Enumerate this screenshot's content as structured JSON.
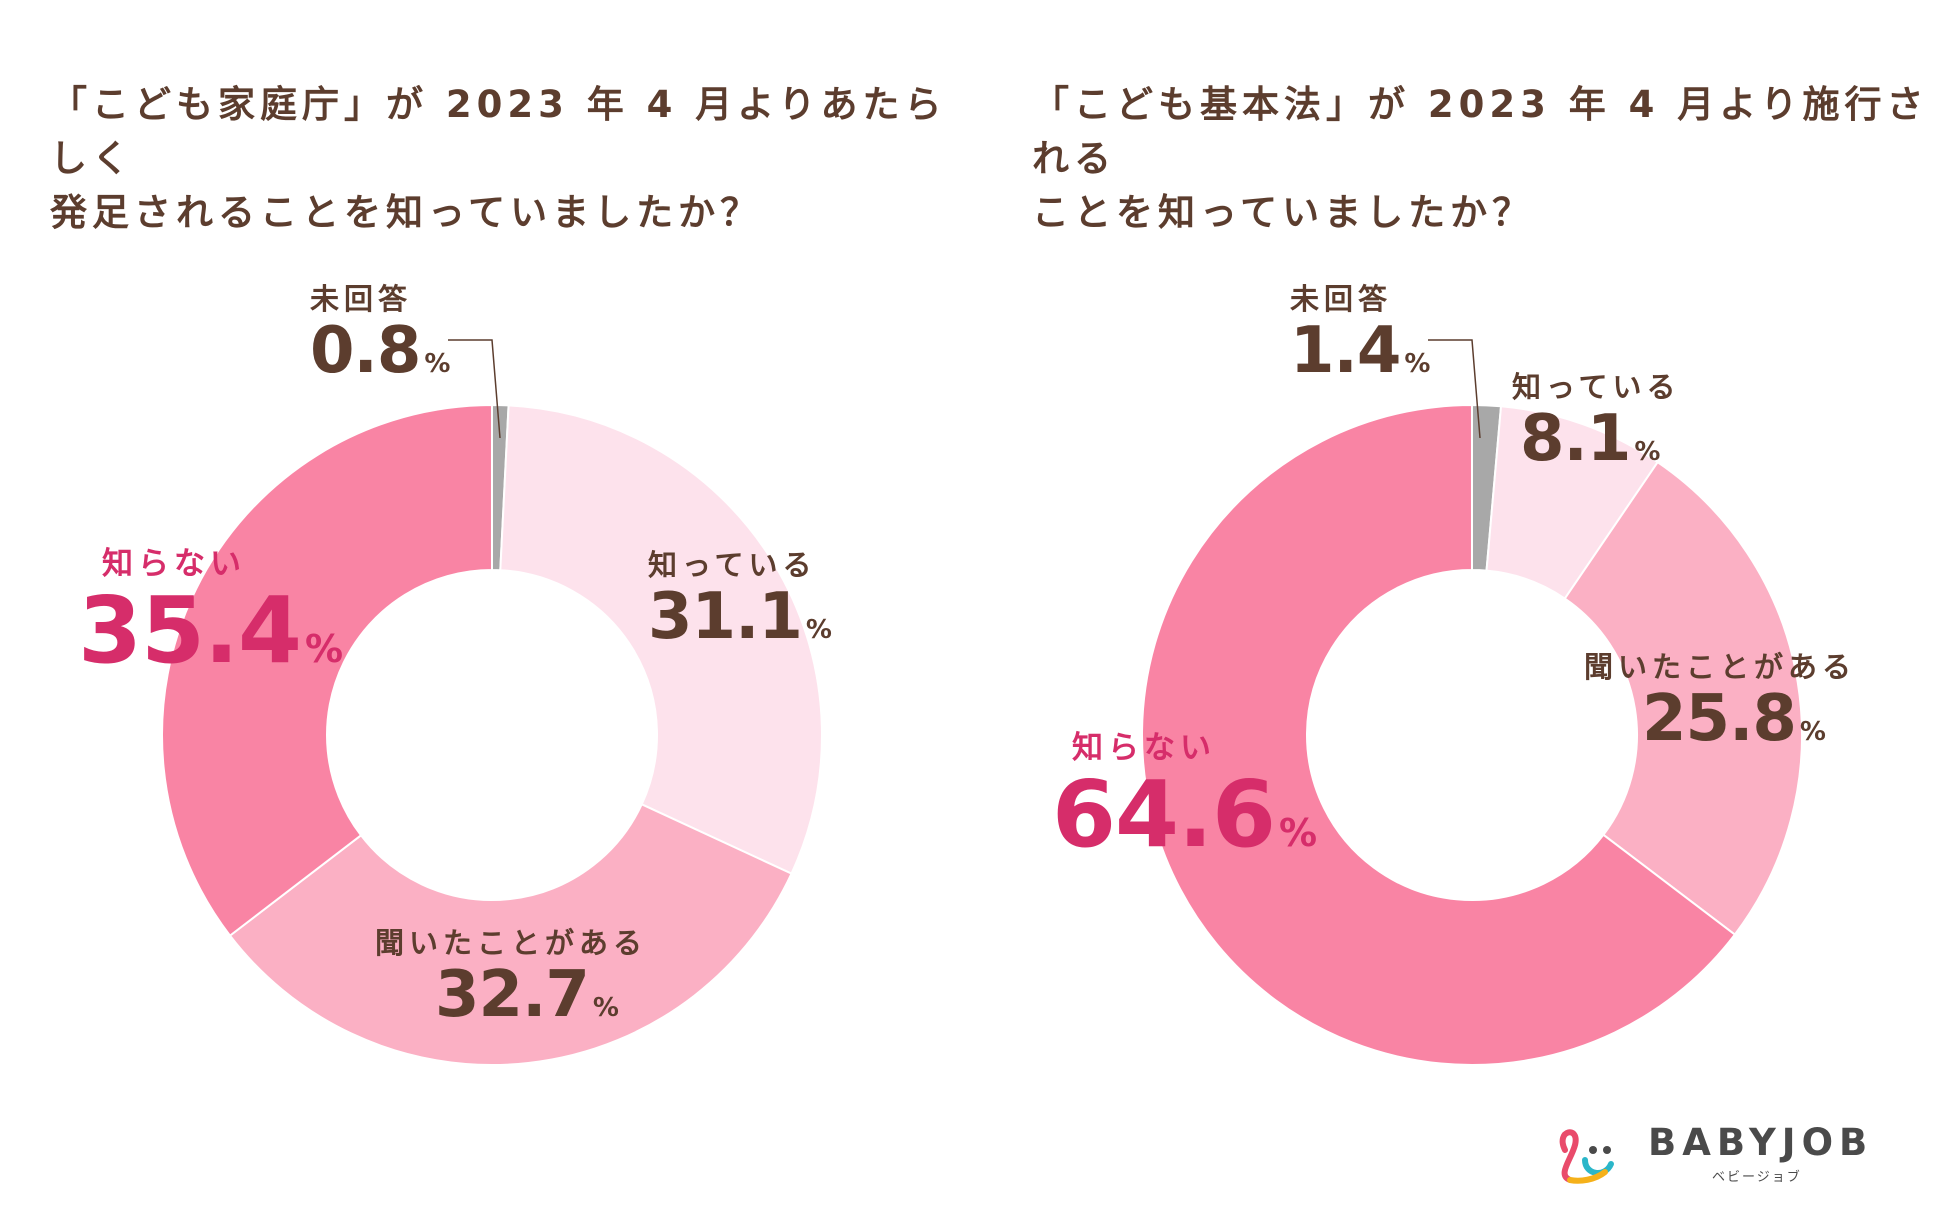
{
  "chart_data": [
    {
      "type": "pie",
      "title": "「こども家庭庁」が 2023 年 4 月よりあたらしく\n発足されることを知っていましたか？",
      "slices": [
        {
          "label": "未回答",
          "value": 0.8,
          "color": "#a8a8a8"
        },
        {
          "label": "知っている",
          "value": 31.1,
          "color": "#fde2ec"
        },
        {
          "label": "聞いたことがある",
          "value": 32.7,
          "color": "#fbb0c4"
        },
        {
          "label": "知らない",
          "value": 35.4,
          "color": "#f984a4"
        }
      ],
      "unit": "%"
    },
    {
      "type": "pie",
      "title": "「こども基本法」が 2023 年 4 月より施行される\nことを知っていましたか？",
      "slices": [
        {
          "label": "未回答",
          "value": 1.4,
          "color": "#a8a8a8"
        },
        {
          "label": "知っている",
          "value": 8.1,
          "color": "#fde2ec"
        },
        {
          "label": "聞いたことがある",
          "value": 25.8,
          "color": "#fbb0c4"
        },
        {
          "label": "知らない",
          "value": 64.6,
          "color": "#f984a4"
        }
      ],
      "unit": "%"
    }
  ],
  "logo": {
    "name": "BABYJOB",
    "sub": "ベビージョブ"
  }
}
